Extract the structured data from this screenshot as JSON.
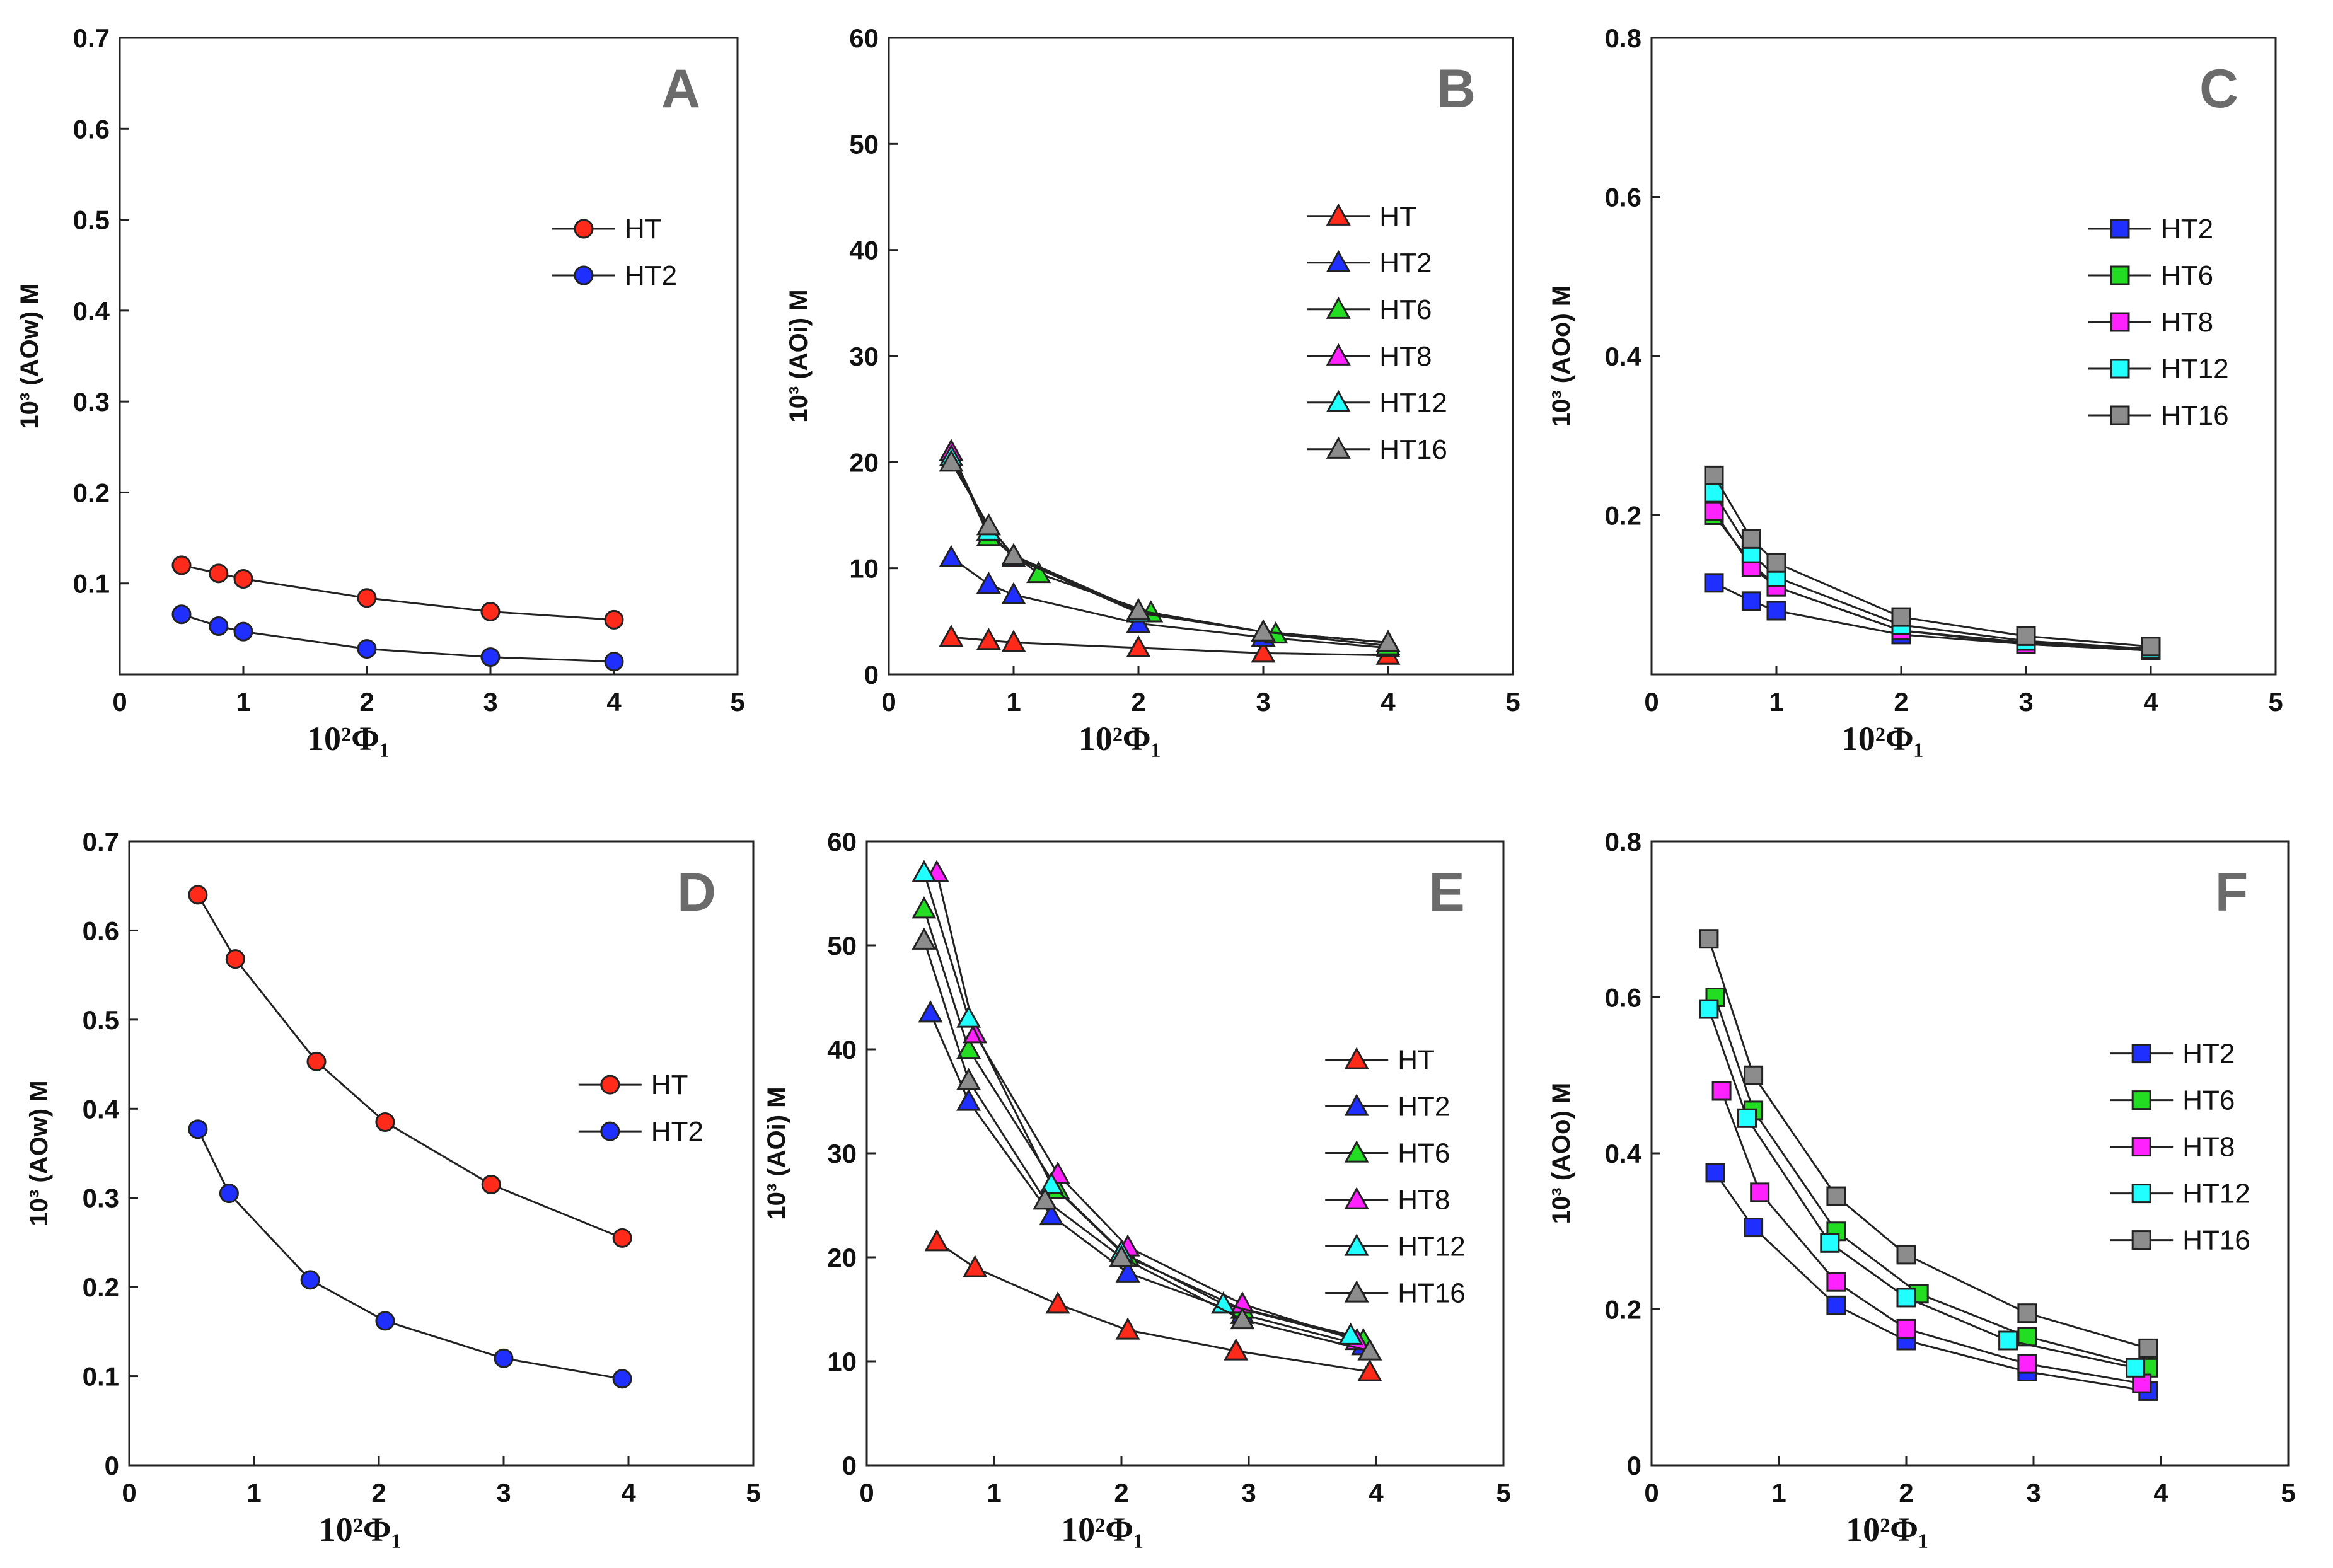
{
  "figure_title": "Six-panel concentration plots (A–F)",
  "chart_data": [
    {
      "panel": "A",
      "type": "line",
      "xlabel": "10²Φ₁",
      "ylabel": "10³ (AOw) M",
      "xlim": [
        0,
        5
      ],
      "ylim": [
        0,
        0.7
      ],
      "xticks": [
        "0",
        "1",
        "2",
        "3",
        "4",
        "5"
      ],
      "yticks": [
        "0.1",
        "0.2",
        "0.3",
        "0.4",
        "0.5",
        "0.6",
        "0.7"
      ],
      "marker": "circle",
      "series": [
        {
          "name": "HT",
          "color": "#ff2a1a",
          "x": [
            0.5,
            0.8,
            1.0,
            2.0,
            3.0,
            4.0
          ],
          "values": [
            0.12,
            0.111,
            0.105,
            0.084,
            0.069,
            0.06
          ]
        },
        {
          "name": "HT2",
          "color": "#1f2fff",
          "x": [
            0.5,
            0.8,
            1.0,
            2.0,
            3.0,
            4.0
          ],
          "values": [
            0.066,
            0.053,
            0.047,
            0.028,
            0.019,
            0.014
          ]
        }
      ]
    },
    {
      "panel": "B",
      "type": "line",
      "xlabel": "10²Φ₁",
      "ylabel": "10³ (AOi) M",
      "xlim": [
        0,
        5
      ],
      "ylim": [
        0,
        60
      ],
      "xticks": [
        "0",
        "1",
        "2",
        "3",
        "4",
        "5"
      ],
      "yticks": [
        "0",
        "10",
        "20",
        "30",
        "40",
        "50",
        "60"
      ],
      "marker": "triangle",
      "series": [
        {
          "name": "HT",
          "color": "#ff2a1a",
          "x": [
            0.5,
            0.8,
            1.0,
            2.0,
            3.0,
            4.0
          ],
          "values": [
            3.5,
            3.2,
            3.0,
            2.5,
            2.0,
            1.8
          ]
        },
        {
          "name": "HT2",
          "color": "#1f2fff",
          "x": [
            0.5,
            0.8,
            1.0,
            2.0,
            3.0,
            4.0
          ],
          "values": [
            11.0,
            8.5,
            7.5,
            4.8,
            3.5,
            2.5
          ]
        },
        {
          "name": "HT6",
          "color": "#22dd22",
          "x": [
            0.5,
            0.8,
            1.2,
            2.1,
            3.1,
            4.0
          ],
          "values": [
            21.0,
            13.0,
            9.5,
            5.8,
            3.8,
            2.7
          ]
        },
        {
          "name": "HT8",
          "color": "#ff22ff",
          "x": [
            0.5,
            0.8,
            1.0,
            2.0,
            3.0,
            4.0
          ],
          "values": [
            21.0,
            13.5,
            11.0,
            6.0,
            4.0,
            3.0
          ]
        },
        {
          "name": "HT12",
          "color": "#22ffff",
          "x": [
            0.5,
            0.8,
            1.0,
            2.0,
            3.0,
            4.0
          ],
          "values": [
            20.5,
            13.5,
            11.0,
            5.8,
            4.0,
            3.0
          ]
        },
        {
          "name": "HT16",
          "color": "#8c8c8c",
          "x": [
            0.5,
            0.8,
            1.0,
            2.0,
            3.0,
            4.0
          ],
          "values": [
            20.0,
            14.0,
            11.2,
            6.0,
            4.0,
            3.0
          ]
        }
      ]
    },
    {
      "panel": "C",
      "type": "line",
      "xlabel": "10²Φ₁",
      "ylabel": "10³ (AOo) M",
      "xlim": [
        0,
        5
      ],
      "ylim": [
        0,
        0.8
      ],
      "xticks": [
        "0",
        "1",
        "2",
        "3",
        "4",
        "5"
      ],
      "yticks": [
        "0.2",
        "0.4",
        "0.6",
        "0.8"
      ],
      "marker": "square",
      "series": [
        {
          "name": "HT2",
          "color": "#1f2fff",
          "x": [
            0.5,
            0.8,
            1.0,
            2.0,
            3.0,
            4.0
          ],
          "values": [
            0.115,
            0.092,
            0.08,
            0.05,
            0.038,
            0.03
          ]
        },
        {
          "name": "HT6",
          "color": "#22dd22",
          "x": [
            0.5,
            0.8,
            1.0,
            2.0,
            3.0,
            4.0
          ],
          "values": [
            0.2,
            0.14,
            0.11,
            0.055,
            0.04,
            0.03
          ]
        },
        {
          "name": "HT8",
          "color": "#ff22ff",
          "x": [
            0.5,
            0.8,
            1.0,
            2.0,
            3.0,
            4.0
          ],
          "values": [
            0.205,
            0.135,
            0.11,
            0.055,
            0.038,
            0.03
          ]
        },
        {
          "name": "HT12",
          "color": "#22ffff",
          "x": [
            0.5,
            0.8,
            1.0,
            2.0,
            3.0,
            4.0
          ],
          "values": [
            0.228,
            0.152,
            0.122,
            0.062,
            0.042,
            0.032
          ]
        },
        {
          "name": "HT16",
          "color": "#8c8c8c",
          "x": [
            0.5,
            0.8,
            1.0,
            2.0,
            3.0,
            4.0
          ],
          "values": [
            0.25,
            0.17,
            0.14,
            0.072,
            0.048,
            0.035
          ]
        }
      ]
    },
    {
      "panel": "D",
      "type": "line",
      "xlabel": "10²Φ₁",
      "ylabel": "10³ (AOw) M",
      "xlim": [
        0,
        5
      ],
      "ylim": [
        0,
        0.7
      ],
      "xticks": [
        "0",
        "1",
        "2",
        "3",
        "4",
        "5"
      ],
      "yticks": [
        "0",
        "0.1",
        "0.2",
        "0.3",
        "0.4",
        "0.5",
        "0.6",
        "0.7"
      ],
      "marker": "circle",
      "series": [
        {
          "name": "HT",
          "color": "#ff2a1a",
          "x": [
            0.55,
            0.85,
            1.5,
            2.05,
            2.9,
            3.95
          ],
          "values": [
            0.64,
            0.568,
            0.453,
            0.385,
            0.315,
            0.255
          ]
        },
        {
          "name": "HT2",
          "color": "#1f2fff",
          "x": [
            0.55,
            0.8,
            1.45,
            2.05,
            3.0,
            3.95
          ],
          "values": [
            0.377,
            0.305,
            0.208,
            0.162,
            0.12,
            0.097
          ]
        }
      ]
    },
    {
      "panel": "E",
      "type": "line",
      "xlabel": "10²Φ₁",
      "ylabel": "10³ (AOi) M",
      "xlim": [
        0,
        5
      ],
      "ylim": [
        0,
        60
      ],
      "xticks": [
        "0",
        "1",
        "2",
        "3",
        "4",
        "5"
      ],
      "yticks": [
        "0",
        "10",
        "20",
        "30",
        "40",
        "50",
        "60"
      ],
      "marker": "triangle",
      "series": [
        {
          "name": "HT",
          "color": "#ff2a1a",
          "x": [
            0.55,
            0.85,
            1.5,
            2.05,
            2.9,
            3.95
          ],
          "values": [
            21.5,
            19.0,
            15.5,
            13.0,
            11.0,
            9.0
          ]
        },
        {
          "name": "HT2",
          "color": "#1f2fff",
          "x": [
            0.5,
            0.8,
            1.45,
            2.05,
            2.95,
            3.9
          ],
          "values": [
            43.5,
            35.0,
            24.0,
            18.5,
            14.5,
            11.5
          ]
        },
        {
          "name": "HT6",
          "color": "#22dd22",
          "x": [
            0.45,
            0.8,
            1.5,
            2.05,
            2.95,
            3.9
          ],
          "values": [
            53.5,
            40.0,
            26.5,
            20.0,
            15.0,
            12.0
          ]
        },
        {
          "name": "HT8",
          "color": "#ff22ff",
          "x": [
            0.55,
            0.85,
            1.5,
            2.05,
            2.95,
            3.85
          ],
          "values": [
            57.0,
            41.5,
            28.0,
            21.0,
            15.5,
            12.0
          ]
        },
        {
          "name": "HT12",
          "color": "#22ffff",
          "x": [
            0.45,
            0.8,
            1.45,
            2.0,
            2.8,
            3.8
          ],
          "values": [
            57.0,
            43.0,
            27.0,
            20.5,
            15.5,
            12.5
          ]
        },
        {
          "name": "HT16",
          "color": "#8c8c8c",
          "x": [
            0.45,
            0.8,
            1.4,
            2.0,
            2.95,
            3.95
          ],
          "values": [
            50.5,
            37.0,
            25.5,
            20.0,
            14.0,
            11.0
          ]
        }
      ]
    },
    {
      "panel": "F",
      "type": "line",
      "xlabel": "10²Φ₁",
      "ylabel": "10³ (AOo) M",
      "xlim": [
        0,
        5
      ],
      "ylim": [
        0,
        0.8
      ],
      "xticks": [
        "0",
        "1",
        "2",
        "3",
        "4",
        "5"
      ],
      "yticks": [
        "0",
        "0.2",
        "0.4",
        "0.6",
        "0.8"
      ],
      "marker": "square",
      "series": [
        {
          "name": "HT2",
          "color": "#1f2fff",
          "x": [
            0.5,
            0.8,
            1.45,
            2.0,
            2.95,
            3.9
          ],
          "values": [
            0.375,
            0.305,
            0.205,
            0.16,
            0.12,
            0.095
          ]
        },
        {
          "name": "HT6",
          "color": "#22dd22",
          "x": [
            0.5,
            0.8,
            1.45,
            2.1,
            2.95,
            3.9
          ],
          "values": [
            0.6,
            0.455,
            0.3,
            0.22,
            0.165,
            0.125
          ]
        },
        {
          "name": "HT8",
          "color": "#ff22ff",
          "x": [
            0.55,
            0.85,
            1.45,
            2.0,
            2.95,
            3.85
          ],
          "values": [
            0.48,
            0.35,
            0.235,
            0.175,
            0.13,
            0.105
          ]
        },
        {
          "name": "HT12",
          "color": "#22ffff",
          "x": [
            0.45,
            0.75,
            1.4,
            2.0,
            2.8,
            3.8
          ],
          "values": [
            0.585,
            0.445,
            0.285,
            0.215,
            0.16,
            0.125
          ]
        },
        {
          "name": "HT16",
          "color": "#8c8c8c",
          "x": [
            0.45,
            0.8,
            1.45,
            2.0,
            2.95,
            3.9
          ],
          "values": [
            0.675,
            0.5,
            0.345,
            0.27,
            0.195,
            0.15
          ]
        }
      ]
    }
  ]
}
